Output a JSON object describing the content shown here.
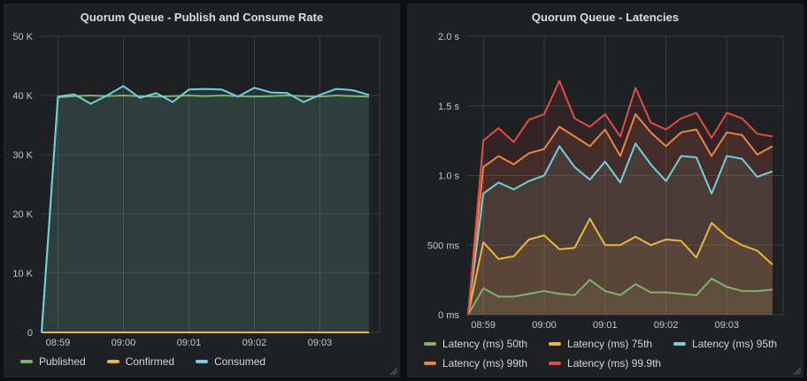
{
  "page": {
    "background": "#0d0e10",
    "panel_background": "#1f2023"
  },
  "chart_data": [
    {
      "type": "area",
      "title": "Quorum Queue - Publish and Consume Rate",
      "x_tick_labels": [
        "08:59",
        "09:00",
        "09:01",
        "09:02",
        "09:03"
      ],
      "ylim": [
        0,
        50000
      ],
      "ylabel": "",
      "xlabel": "",
      "grid": true,
      "legend_position": "bottom",
      "y_ticks": [
        {
          "value": 0,
          "label": "0"
        },
        {
          "value": 10000,
          "label": "10 K"
        },
        {
          "value": 20000,
          "label": "20 K"
        },
        {
          "value": 30000,
          "label": "30 K"
        },
        {
          "value": 40000,
          "label": "40 K"
        },
        {
          "value": 50000,
          "label": "50 K"
        }
      ],
      "series": [
        {
          "name": "Published",
          "color": "#7EB26D",
          "values": [
            0,
            39700,
            39900,
            40000,
            39900,
            40000,
            39900,
            39800,
            39900,
            40000,
            39900,
            40000,
            39900,
            39800,
            39900,
            40000,
            39900,
            39800,
            40000,
            39900,
            39800
          ]
        },
        {
          "name": "Confirmed",
          "color": "#EAB839",
          "values": [
            0,
            0,
            0,
            0,
            0,
            0,
            0,
            0,
            0,
            0,
            0,
            0,
            0,
            0,
            0,
            0,
            0,
            0,
            0,
            0,
            0
          ]
        },
        {
          "name": "Consumed",
          "color": "#6ED0E0",
          "values": [
            0,
            39800,
            40200,
            38600,
            40000,
            41600,
            39600,
            40400,
            38900,
            41000,
            41100,
            41000,
            39800,
            41300,
            40500,
            40400,
            38900,
            40100,
            41100,
            40900,
            40100
          ]
        }
      ],
      "layout": {
        "axis_width": 40,
        "legend_rows": 1
      }
    },
    {
      "type": "area",
      "title": "Quorum Queue - Latencies",
      "x_tick_labels": [
        "08:59",
        "09:00",
        "09:01",
        "09:02",
        "09:03"
      ],
      "ylim": [
        0,
        2
      ],
      "ylabel": "",
      "xlabel": "",
      "grid": true,
      "legend_position": "bottom",
      "y_ticks": [
        {
          "value": 0,
          "label": "0 ms"
        },
        {
          "value": 0.5,
          "label": "500 ms"
        },
        {
          "value": 1,
          "label": "1.0 s"
        },
        {
          "value": 1.5,
          "label": "1.5 s"
        },
        {
          "value": 2,
          "label": "2.0 s"
        }
      ],
      "series": [
        {
          "name": "Latency (ms) 50th",
          "color": "#7EB26D",
          "values": [
            0,
            0.19,
            0.13,
            0.13,
            0.15,
            0.17,
            0.15,
            0.14,
            0.25,
            0.17,
            0.14,
            0.22,
            0.16,
            0.16,
            0.15,
            0.14,
            0.26,
            0.2,
            0.17,
            0.17,
            0.18
          ]
        },
        {
          "name": "Latency (ms) 75th",
          "color": "#EAB839",
          "values": [
            0,
            0.52,
            0.4,
            0.42,
            0.54,
            0.57,
            0.47,
            0.48,
            0.69,
            0.5,
            0.5,
            0.56,
            0.5,
            0.54,
            0.53,
            0.41,
            0.66,
            0.56,
            0.5,
            0.46,
            0.36
          ]
        },
        {
          "name": "Latency (ms) 95th",
          "color": "#6ED0E0",
          "values": [
            0,
            0.87,
            0.95,
            0.9,
            0.96,
            1.0,
            1.21,
            1.06,
            0.97,
            1.1,
            0.95,
            1.23,
            1.08,
            0.96,
            1.14,
            1.13,
            0.87,
            1.14,
            1.12,
            0.99,
            1.03
          ]
        },
        {
          "name": "Latency (ms) 99th",
          "color": "#EF843C",
          "values": [
            0,
            1.06,
            1.14,
            1.08,
            1.16,
            1.19,
            1.35,
            1.28,
            1.21,
            1.33,
            1.14,
            1.44,
            1.31,
            1.21,
            1.31,
            1.33,
            1.14,
            1.31,
            1.29,
            1.15,
            1.21
          ]
        },
        {
          "name": "Latency (ms) 99.9th",
          "color": "#E24D42",
          "values": [
            0,
            1.25,
            1.34,
            1.24,
            1.4,
            1.44,
            1.68,
            1.41,
            1.35,
            1.44,
            1.28,
            1.63,
            1.38,
            1.33,
            1.41,
            1.45,
            1.27,
            1.45,
            1.41,
            1.3,
            1.28
          ]
        }
      ],
      "layout": {
        "axis_width": 66,
        "legend_rows": 2,
        "legend_break_after": 3
      }
    }
  ]
}
